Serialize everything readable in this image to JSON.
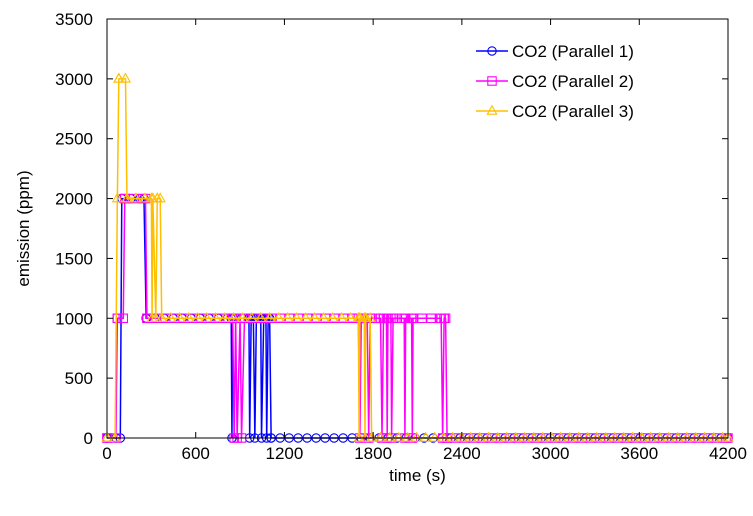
{
  "chart_data": {
    "type": "line",
    "xlabel": "time (s)",
    "ylabel": "emission (ppm)",
    "xlim": [
      0,
      4200
    ],
    "ylim": [
      0,
      3500
    ],
    "xticks": [
      0,
      600,
      1200,
      1800,
      2400,
      3000,
      3600,
      4200
    ],
    "yticks": [
      0,
      500,
      1000,
      1500,
      2000,
      2500,
      3000,
      3500
    ],
    "grid": false,
    "legend_position": "top-right",
    "series": [
      {
        "name": "CO2 (Parallel 1)",
        "color": "#0000ff",
        "marker": "circle",
        "points": [
          [
            0,
            0
          ],
          [
            90,
            0
          ],
          [
            100,
            2000
          ],
          [
            250,
            2000
          ],
          [
            265,
            1000
          ],
          [
            840,
            1000
          ],
          [
            845,
            0
          ],
          [
            850,
            1000
          ],
          [
            960,
            1000
          ],
          [
            965,
            0
          ],
          [
            975,
            1000
          ],
          [
            990,
            1000
          ],
          [
            1000,
            0
          ],
          [
            1010,
            1000
          ],
          [
            1040,
            1000
          ],
          [
            1045,
            0
          ],
          [
            1060,
            1000
          ],
          [
            1075,
            1000
          ],
          [
            1080,
            0
          ],
          [
            1090,
            1000
          ],
          [
            1100,
            1000
          ],
          [
            1110,
            0
          ],
          [
            4200,
            0
          ]
        ]
      },
      {
        "name": "CO2 (Parallel 2)",
        "color": "#ff00ff",
        "marker": "square",
        "points": [
          [
            0,
            0
          ],
          [
            60,
            0
          ],
          [
            70,
            1000
          ],
          [
            110,
            1000
          ],
          [
            120,
            2000
          ],
          [
            260,
            2000
          ],
          [
            270,
            1000
          ],
          [
            850,
            1000
          ],
          [
            860,
            0
          ],
          [
            870,
            1000
          ],
          [
            880,
            0
          ],
          [
            900,
            1000
          ],
          [
            910,
            0
          ],
          [
            930,
            1000
          ],
          [
            1700,
            1000
          ],
          [
            1710,
            0
          ],
          [
            1720,
            1000
          ],
          [
            1760,
            1000
          ],
          [
            1770,
            0
          ],
          [
            1780,
            1000
          ],
          [
            1850,
            1000
          ],
          [
            1860,
            0
          ],
          [
            1870,
            1000
          ],
          [
            1890,
            1000
          ],
          [
            1895,
            0
          ],
          [
            1900,
            1000
          ],
          [
            1920,
            1000
          ],
          [
            1925,
            0
          ],
          [
            1935,
            1000
          ],
          [
            2010,
            1000
          ],
          [
            2015,
            0
          ],
          [
            2020,
            1000
          ],
          [
            2060,
            1000
          ],
          [
            2065,
            0
          ],
          [
            2070,
            1000
          ],
          [
            2260,
            1000
          ],
          [
            2270,
            0
          ],
          [
            2280,
            1000
          ],
          [
            2290,
            1000
          ],
          [
            2300,
            0
          ],
          [
            4200,
            0
          ]
        ]
      },
      {
        "name": "CO2 (Parallel 3)",
        "color": "#ffbf00",
        "marker": "triangle",
        "points": [
          [
            0,
            0
          ],
          [
            55,
            0
          ],
          [
            70,
            2000
          ],
          [
            80,
            3000
          ],
          [
            125,
            3000
          ],
          [
            135,
            2000
          ],
          [
            300,
            2000
          ],
          [
            305,
            1000
          ],
          [
            310,
            2000
          ],
          [
            330,
            1000
          ],
          [
            340,
            2000
          ],
          [
            360,
            2000
          ],
          [
            370,
            1000
          ],
          [
            1700,
            1000
          ],
          [
            1705,
            0
          ],
          [
            1710,
            1000
          ],
          [
            1740,
            1000
          ],
          [
            1745,
            0
          ],
          [
            1750,
            1000
          ],
          [
            1780,
            1000
          ],
          [
            1790,
            0
          ],
          [
            4200,
            0
          ]
        ]
      }
    ]
  }
}
